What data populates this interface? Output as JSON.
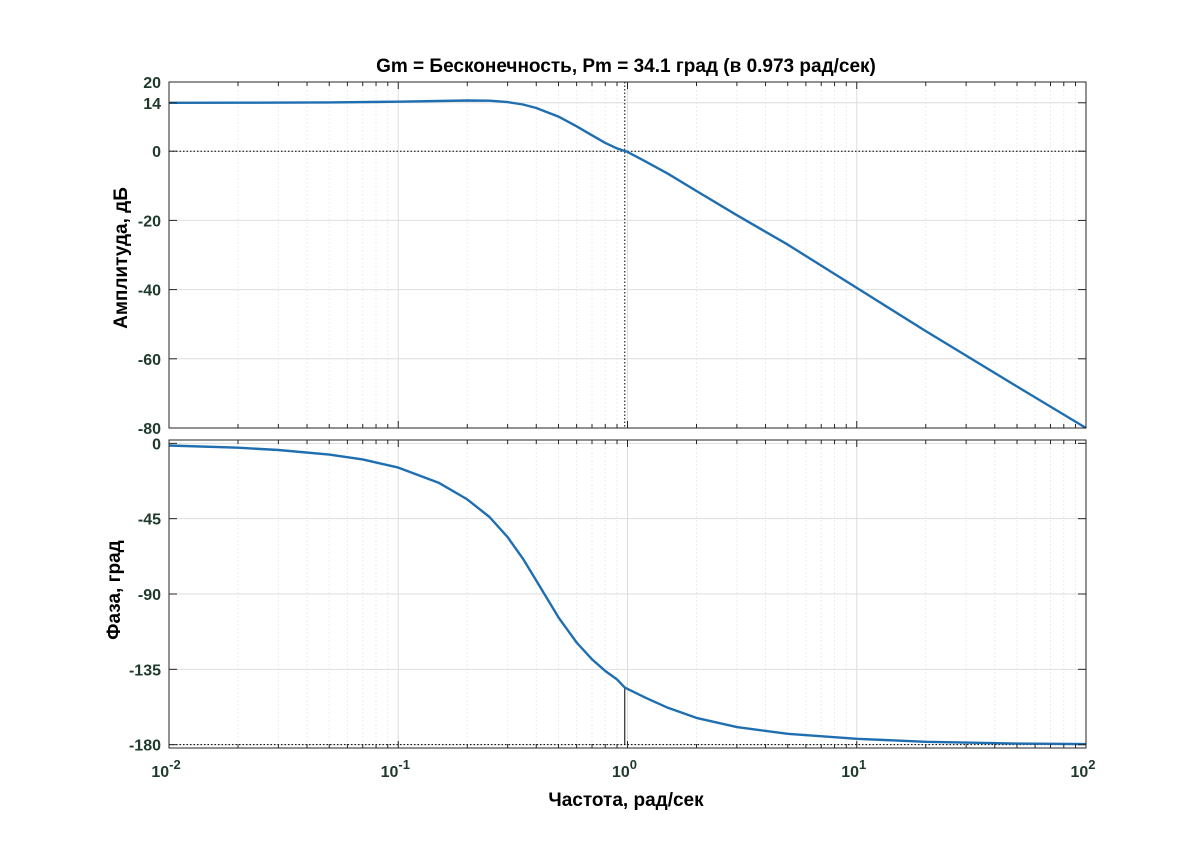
{
  "chart_data": [
    {
      "type": "line",
      "panel": "magnitude",
      "title": "Gm = Бесконечность,  Pm = 34.1 град (в 0.973 рад/сек)",
      "ylabel": "Амплитуда, дБ",
      "xlabel": "",
      "xscale": "log",
      "xlim": [
        0.01,
        100
      ],
      "ylim": [
        -80,
        20
      ],
      "yticks": [
        20,
        14,
        0,
        -20,
        -40,
        -60,
        -80
      ],
      "ytick_labels": [
        "20",
        "14",
        "0",
        "-20",
        "-40",
        "-60",
        "-80"
      ],
      "grid": true,
      "series": [
        {
          "x": [
            0.01,
            0.02,
            0.05,
            0.1,
            0.15,
            0.2,
            0.25,
            0.3,
            0.35,
            0.4,
            0.5,
            0.6,
            0.7,
            0.8,
            0.9,
            1.0,
            1.2,
            1.5,
            2,
            3,
            5,
            10,
            20,
            50,
            100
          ],
          "y": [
            14,
            14.03,
            14.1,
            14.3,
            14.5,
            14.65,
            14.6,
            14.2,
            13.5,
            12.5,
            10,
            7.2,
            4.6,
            2.4,
            0.8,
            -0.2,
            -3,
            -6.5,
            -11.5,
            -18.5,
            -27,
            -39.5,
            -52,
            -68,
            -80
          ]
        }
      ],
      "reference_lines": [
        {
          "axis": "y",
          "value": 0
        },
        {
          "axis": "x",
          "value": 0.973
        }
      ]
    },
    {
      "type": "line",
      "panel": "phase",
      "title": "",
      "ylabel": "Фаза, град",
      "xlabel": "Частота, рад/сек",
      "xscale": "log",
      "xlim": [
        0.01,
        100
      ],
      "ylim": [
        -182,
        2
      ],
      "yticks": [
        0,
        -45,
        -90,
        -135,
        -180
      ],
      "ytick_labels": [
        "0",
        "-45",
        "-90",
        "-135",
        "-180"
      ],
      "xtick_labels": [
        {
          "base": "10",
          "exp": "-2"
        },
        {
          "base": "10",
          "exp": "-1"
        },
        {
          "base": "10",
          "exp": "0"
        },
        {
          "base": "10",
          "exp": "1"
        },
        {
          "base": "10",
          "exp": "2"
        }
      ],
      "grid": true,
      "series": [
        {
          "x": [
            0.01,
            0.02,
            0.03,
            0.05,
            0.07,
            0.1,
            0.15,
            0.2,
            0.25,
            0.3,
            0.35,
            0.4,
            0.5,
            0.6,
            0.7,
            0.8,
            0.9,
            0.973,
            1.2,
            1.5,
            2,
            3,
            5,
            10,
            20,
            50,
            100
          ],
          "y": [
            -1.3,
            -2.6,
            -4,
            -6.7,
            -9.6,
            -14.5,
            -23.5,
            -33.5,
            -44,
            -56,
            -69,
            -82,
            -104,
            -119,
            -129,
            -136,
            -141,
            -145.9,
            -152,
            -158,
            -164,
            -169.5,
            -173.5,
            -176.5,
            -178.3,
            -179.4,
            -179.7
          ]
        }
      ],
      "reference_lines": [
        {
          "axis": "y",
          "value": -180
        },
        {
          "axis": "x",
          "value": 0.973,
          "from": -180,
          "to": -145.9
        }
      ]
    }
  ],
  "colors": {
    "line": "#1f6fb0",
    "tick_text": "#1f3a2c",
    "grid": "#dedede",
    "axes": "#262626"
  }
}
